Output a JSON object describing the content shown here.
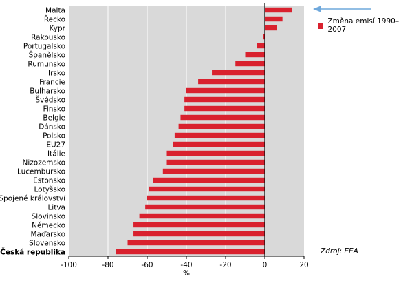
{
  "chart_data": {
    "type": "bar",
    "orientation": "horizontal",
    "categories": [
      "Malta",
      "Řecko",
      "Kypr",
      "Rakousko",
      "Portugalsko",
      "Španělsko",
      "Rumunsko",
      "Irsko",
      "Francie",
      "Bulharsko",
      "Švédsko",
      "Finsko",
      "Belgie",
      "Dánsko",
      "Polsko",
      "EU27",
      "Itálie",
      "Nizozemsko",
      "Lucembursko",
      "Estonsko",
      "Lotyšsko",
      "Spojené království",
      "Litva",
      "Slovinsko",
      "Německo",
      "Maďarsko",
      "Slovensko",
      "Česká republika"
    ],
    "highlight_category": "Česká republika",
    "series": [
      {
        "name": "Změna emisí 1990–2007",
        "color": "#d9212e",
        "values": [
          14,
          9,
          6,
          -1,
          -4,
          -10,
          -15,
          -27,
          -34,
          -40,
          -41,
          -41,
          -43,
          -44,
          -46,
          -47,
          -50,
          -50,
          -52,
          -57,
          -59,
          -60,
          -61,
          -64,
          -67,
          -67,
          -70,
          -76
        ]
      }
    ],
    "xlabel": "%",
    "xlim": [
      -100,
      20
    ],
    "xticks": [
      -100,
      -80,
      -60,
      -40,
      -20,
      0,
      20
    ],
    "grid": true,
    "legend_position": "top-right",
    "source": "Zdroj: EEA"
  },
  "legend": {
    "label": "Změna emisí 1990–2007",
    "color": "#d9212e"
  },
  "source_text": "Zdroj: EEA",
  "colors": {
    "plot_background": "#d9d9d9",
    "bar": "#d9212e",
    "arrow": "#6fa8dc"
  }
}
